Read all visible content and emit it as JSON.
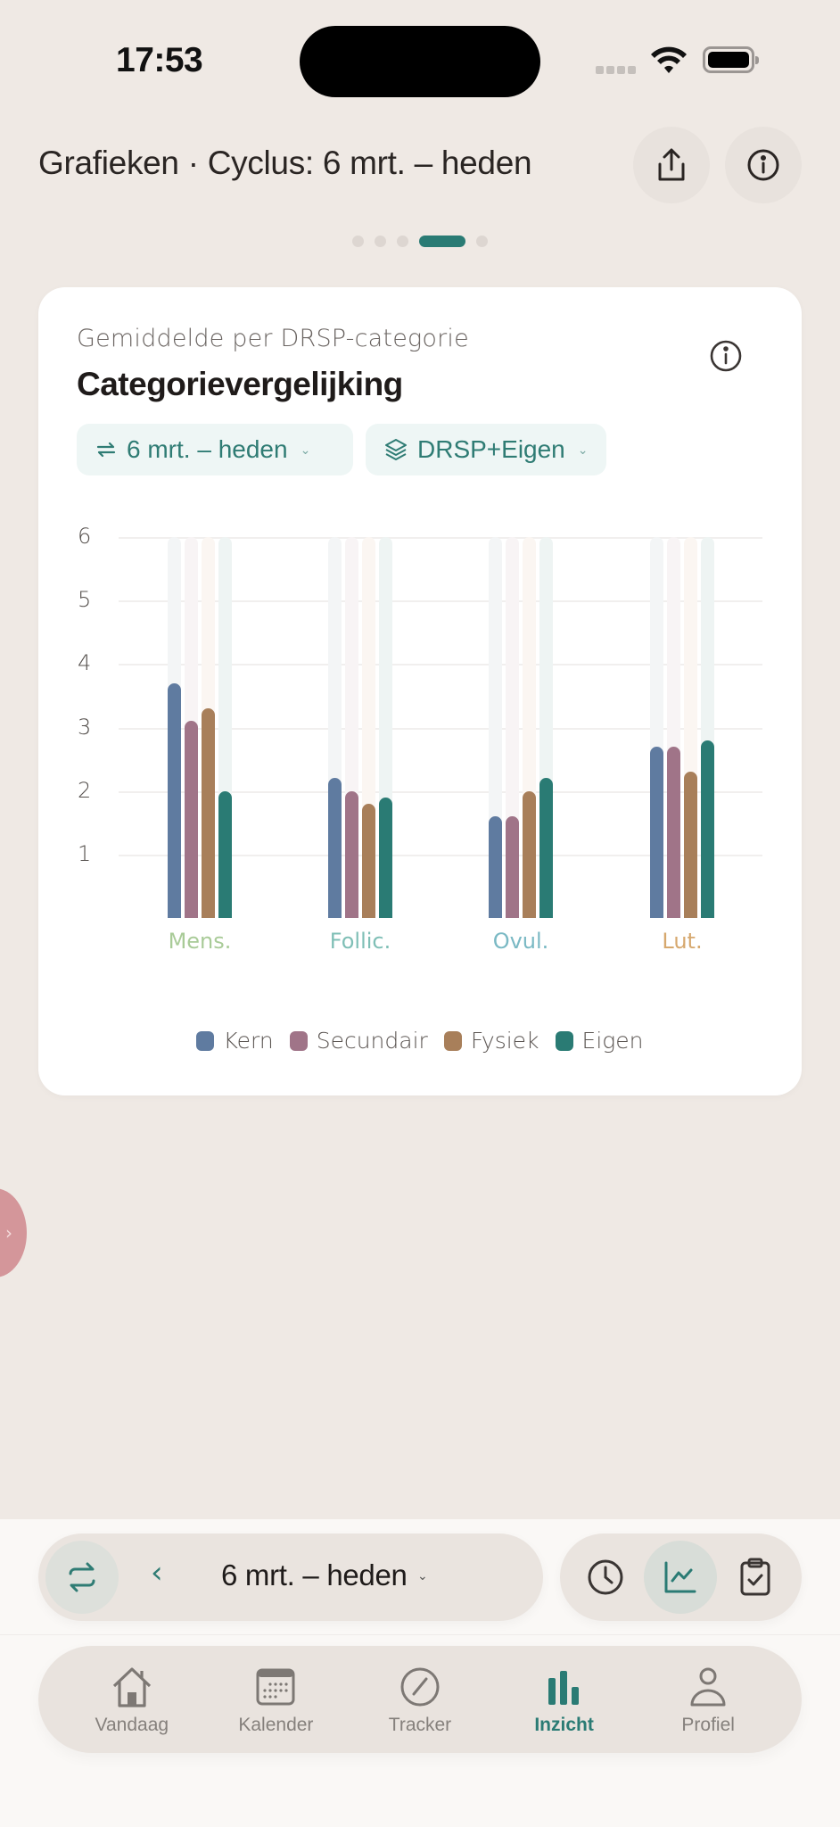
{
  "status_bar": {
    "time": "17:53"
  },
  "header": {
    "title": "Grafieken · Cyclus: 6 mrt. – heden",
    "share_icon": "share-icon",
    "info_icon": "info-icon"
  },
  "pager": {
    "count": 5,
    "active_index": 3
  },
  "card": {
    "subtitle": "Gemiddelde per DRSP-categorie",
    "title": "Categorievergelijking",
    "chips": [
      {
        "icon": "cycle-icon",
        "label": "6 mrt. – heden"
      },
      {
        "icon": "layers-icon",
        "label": "DRSP+Eigen"
      }
    ]
  },
  "chart_data": {
    "type": "bar",
    "title": "Categorievergelijking",
    "subtitle": "Gemiddelde per DRSP-categorie",
    "categories": [
      "Mens.",
      "Follic.",
      "Ovul.",
      "Lut."
    ],
    "category_colors": [
      "#A9CB98",
      "#7FBFB6",
      "#7AB9C4",
      "#D6A86E"
    ],
    "series": [
      {
        "name": "Kern",
        "color": "#5F7BA0",
        "values": [
          3.7,
          2.2,
          1.6,
          2.7
        ]
      },
      {
        "name": "Secundair",
        "color": "#A07488",
        "values": [
          3.1,
          2.0,
          1.6,
          2.7
        ]
      },
      {
        "name": "Fysiek",
        "color": "#A87F5A",
        "values": [
          3.3,
          1.8,
          2.0,
          2.3
        ]
      },
      {
        "name": "Eigen",
        "color": "#2A7B74",
        "values": [
          2.0,
          1.9,
          2.2,
          2.8
        ]
      }
    ],
    "yticks": [
      1,
      2,
      3,
      4,
      5,
      6
    ],
    "ylim": [
      0,
      6
    ],
    "xlabel": "",
    "ylabel": "",
    "grid": true,
    "legend_position": "bottom"
  },
  "legend": [
    {
      "label": "Kern",
      "color": "#5F7BA0"
    },
    {
      "label": "Secundair",
      "color": "#A07488"
    },
    {
      "label": "Fysiek",
      "color": "#A87F5A"
    },
    {
      "label": "Eigen",
      "color": "#2A7B74"
    }
  ],
  "range_bar": {
    "cycle_icon": "cycle-icon",
    "prev_label": "‹",
    "label": "6 mrt. – heden",
    "caret": "⌄"
  },
  "view_switcher": [
    {
      "icon": "clock-icon",
      "active": false
    },
    {
      "icon": "line-chart-icon",
      "active": true
    },
    {
      "icon": "clipboard-check-icon",
      "active": false
    }
  ],
  "tabbar": {
    "tabs": [
      {
        "label": "Vandaag",
        "icon": "home-icon",
        "active": false
      },
      {
        "label": "Kalender",
        "icon": "calendar-icon",
        "active": false
      },
      {
        "label": "Tracker",
        "icon": "compass-pencil-icon",
        "active": false
      },
      {
        "label": "Inzicht",
        "icon": "bar-chart-icon",
        "active": true
      },
      {
        "label": "Profiel",
        "icon": "person-icon",
        "active": false
      }
    ]
  },
  "colors": {
    "accent": "#2A7B74",
    "background": "#EFE9E4",
    "side_tab": "#D4969A"
  }
}
